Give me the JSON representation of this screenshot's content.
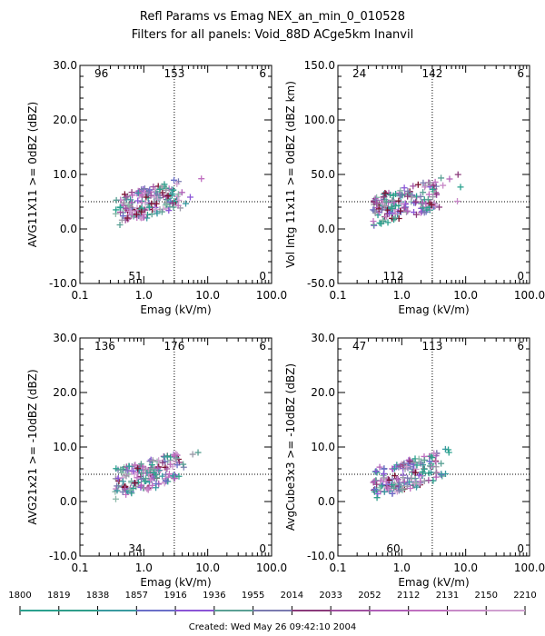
{
  "header": {
    "title": "Refl Params vs Emag    NEX_an_min_0_010528",
    "subtitle": "Filters for all panels:  Void_88D ACge5km Inanvil"
  },
  "footer": {
    "created": "Created: Wed May 26 09:42:10 2004"
  },
  "colors": {
    "axis": "#000000",
    "background": "#ffffff"
  },
  "chart_data": [
    {
      "type": "scatter",
      "xlabel": "Emag (kV/m)",
      "ylabel": "AVG11X11 >= 0dBZ (dBZ)",
      "xscale": "log",
      "xlim": [
        0.1,
        100.0
      ],
      "ylim": [
        -10.0,
        30.0
      ],
      "xticks": [
        "0.1",
        "1.0",
        "10.0",
        "100.0"
      ],
      "yticks": [
        "-10.0",
        "0.0",
        "10.0",
        "20.0",
        "30.0"
      ],
      "x_threshold": 3.0,
      "y_threshold": 5.0,
      "quadrant_counts": {
        "top_left": "96",
        "top_center": "153",
        "top_right": "6",
        "bottom_center": "51",
        "bottom_right": "0"
      },
      "grid": false
    },
    {
      "type": "scatter",
      "xlabel": "Emag (kV/m)",
      "ylabel": "Vol Intg 11x11 >= 0dBZ (dBZ km)",
      "xscale": "log",
      "xlim": [
        0.1,
        100.0
      ],
      "ylim": [
        -50.0,
        150.0
      ],
      "xticks": [
        "0.1",
        "1.0",
        "10.0",
        "100.0"
      ],
      "yticks": [
        "-50.0",
        "0.0",
        "50.0",
        "100.0",
        "150.0"
      ],
      "x_threshold": 3.0,
      "y_threshold": 25.0,
      "quadrant_counts": {
        "top_left": "24",
        "top_center": "142",
        "top_right": "6",
        "bottom_center": "112",
        "bottom_right": "0"
      },
      "grid": false
    },
    {
      "type": "scatter",
      "xlabel": "Emag (kV/m)",
      "ylabel": "AVG21x21 >= -10dBZ (dBZ)",
      "xscale": "log",
      "xlim": [
        0.1,
        100.0
      ],
      "ylim": [
        -10.0,
        30.0
      ],
      "xticks": [
        "0.1",
        "1.0",
        "10.0",
        "100.0"
      ],
      "yticks": [
        "-10.0",
        "0.0",
        "10.0",
        "20.0",
        "30.0"
      ],
      "x_threshold": 3.0,
      "y_threshold": 5.0,
      "quadrant_counts": {
        "top_left": "136",
        "top_center": "176",
        "top_right": "6",
        "bottom_center": "34",
        "bottom_right": "0"
      },
      "grid": false
    },
    {
      "type": "scatter",
      "xlabel": "Emag (kV/m)",
      "ylabel": "AvgCube3x3 >= -10dBZ (dBZ)",
      "xscale": "log",
      "xlim": [
        0.1,
        100.0
      ],
      "ylim": [
        -10.0,
        30.0
      ],
      "xticks": [
        "0.1",
        "1.0",
        "10.0",
        "100.0"
      ],
      "yticks": [
        "-10.0",
        "0.0",
        "10.0",
        "20.0",
        "30.0"
      ],
      "x_threshold": 3.0,
      "y_threshold": 5.0,
      "quadrant_counts": {
        "top_left": "47",
        "top_center": "113",
        "top_right": "6",
        "bottom_center": "60",
        "bottom_right": "0"
      },
      "grid": false
    }
  ],
  "colorbar": {
    "labels": [
      "1800",
      "1819",
      "1838",
      "1857",
      "1916",
      "1936",
      "1955",
      "2014",
      "2033",
      "2052",
      "2112",
      "2131",
      "2150",
      "2210"
    ],
    "segments": [
      {
        "color": "#2aa18e"
      },
      {
        "color": "#2f9e8a"
      },
      {
        "color": "#3a9aa0"
      },
      {
        "color": "#6a6fc8"
      },
      {
        "color": "#8a55d6"
      },
      {
        "color": "#5aa094"
      },
      {
        "color": "#7a7ab0"
      },
      {
        "color": "#8a3a7a"
      },
      {
        "color": "#a050a0"
      },
      {
        "color": "#b060b8"
      },
      {
        "color": "#c070c0"
      },
      {
        "color": "#c88ac8"
      },
      {
        "color": "#d0a0d0"
      }
    ]
  }
}
